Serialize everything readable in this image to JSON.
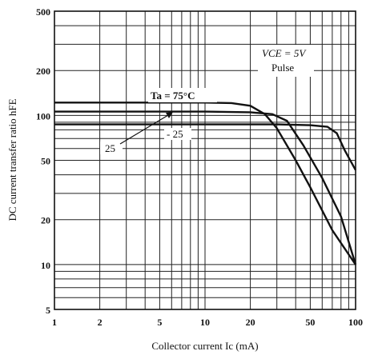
{
  "chart_data": {
    "type": "line",
    "xscale": "log",
    "yscale": "log",
    "xlim": [
      1,
      100
    ],
    "ylim": [
      5,
      500
    ],
    "xlabel": "Collector current  Ic (mA)",
    "ylabel": "DC current transfer ratio  hFE",
    "x_ticks": [
      "1",
      "2",
      "5",
      "10",
      "20",
      "50",
      "100"
    ],
    "y_ticks": [
      "5",
      "10",
      "20",
      "50",
      "100",
      "200",
      "500"
    ],
    "grid": true,
    "annotations": {
      "conditions_line1": "VCE = 5V",
      "conditions_line2": "Pulse",
      "temp_label": "Ta = 75°C",
      "label_25": "25",
      "label_minus25": "- 25"
    },
    "series": [
      {
        "name": "Ta = 75°C",
        "points": [
          [
            1,
            122
          ],
          [
            5,
            122
          ],
          [
            10,
            122
          ],
          [
            15,
            121
          ],
          [
            20,
            116
          ],
          [
            25,
            102
          ],
          [
            30,
            82
          ],
          [
            40,
            50
          ],
          [
            50,
            33
          ],
          [
            70,
            17
          ],
          [
            100,
            10
          ]
        ]
      },
      {
        "name": "25",
        "points": [
          [
            1,
            106
          ],
          [
            10,
            106
          ],
          [
            20,
            105
          ],
          [
            28,
            102
          ],
          [
            35,
            92
          ],
          [
            45,
            63
          ],
          [
            60,
            38
          ],
          [
            80,
            21
          ],
          [
            100,
            10
          ]
        ]
      },
      {
        "name": "- 25",
        "points": [
          [
            1,
            87
          ],
          [
            10,
            87
          ],
          [
            30,
            87
          ],
          [
            50,
            86
          ],
          [
            65,
            84
          ],
          [
            75,
            76
          ],
          [
            85,
            58
          ],
          [
            100,
            43
          ]
        ]
      }
    ]
  }
}
